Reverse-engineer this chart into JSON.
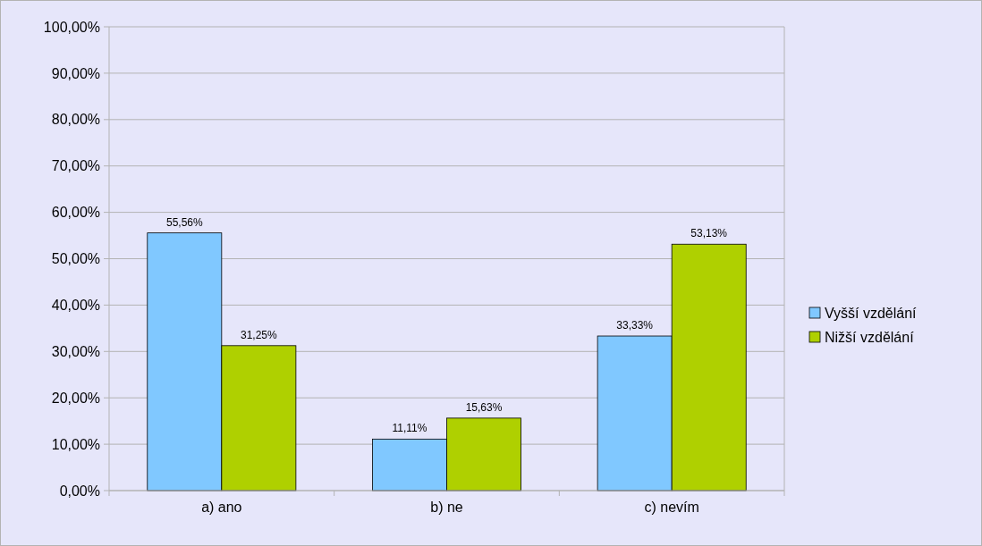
{
  "chart_data": {
    "type": "bar",
    "categories": [
      "a) ano",
      "b) ne",
      "c) nevím"
    ],
    "series": [
      {
        "name": "Vyšší vzdělání",
        "color": "#80c8ff",
        "values": [
          55.56,
          11.11,
          33.33
        ],
        "value_labels": [
          "55,56%",
          "11,11%",
          "33,33%"
        ]
      },
      {
        "name": "Nižší vzdělání",
        "color": "#afd000",
        "values": [
          31.25,
          15.63,
          53.13
        ],
        "value_labels": [
          "31,25%",
          "15,63%",
          "53,13%"
        ]
      }
    ],
    "ylim": [
      0,
      100
    ],
    "yticks": [
      {
        "value": 0,
        "label": "0,00%"
      },
      {
        "value": 10,
        "label": "10,00%"
      },
      {
        "value": 20,
        "label": "20,00%"
      },
      {
        "value": 30,
        "label": "30,00%"
      },
      {
        "value": 40,
        "label": "40,00%"
      },
      {
        "value": 50,
        "label": "50,00%"
      },
      {
        "value": 60,
        "label": "60,00%"
      },
      {
        "value": 70,
        "label": "70,00%"
      },
      {
        "value": 80,
        "label": "80,00%"
      },
      {
        "value": 90,
        "label": "90,00%"
      },
      {
        "value": 100,
        "label": "100,00%"
      }
    ],
    "grid": "y",
    "legend": "right"
  }
}
